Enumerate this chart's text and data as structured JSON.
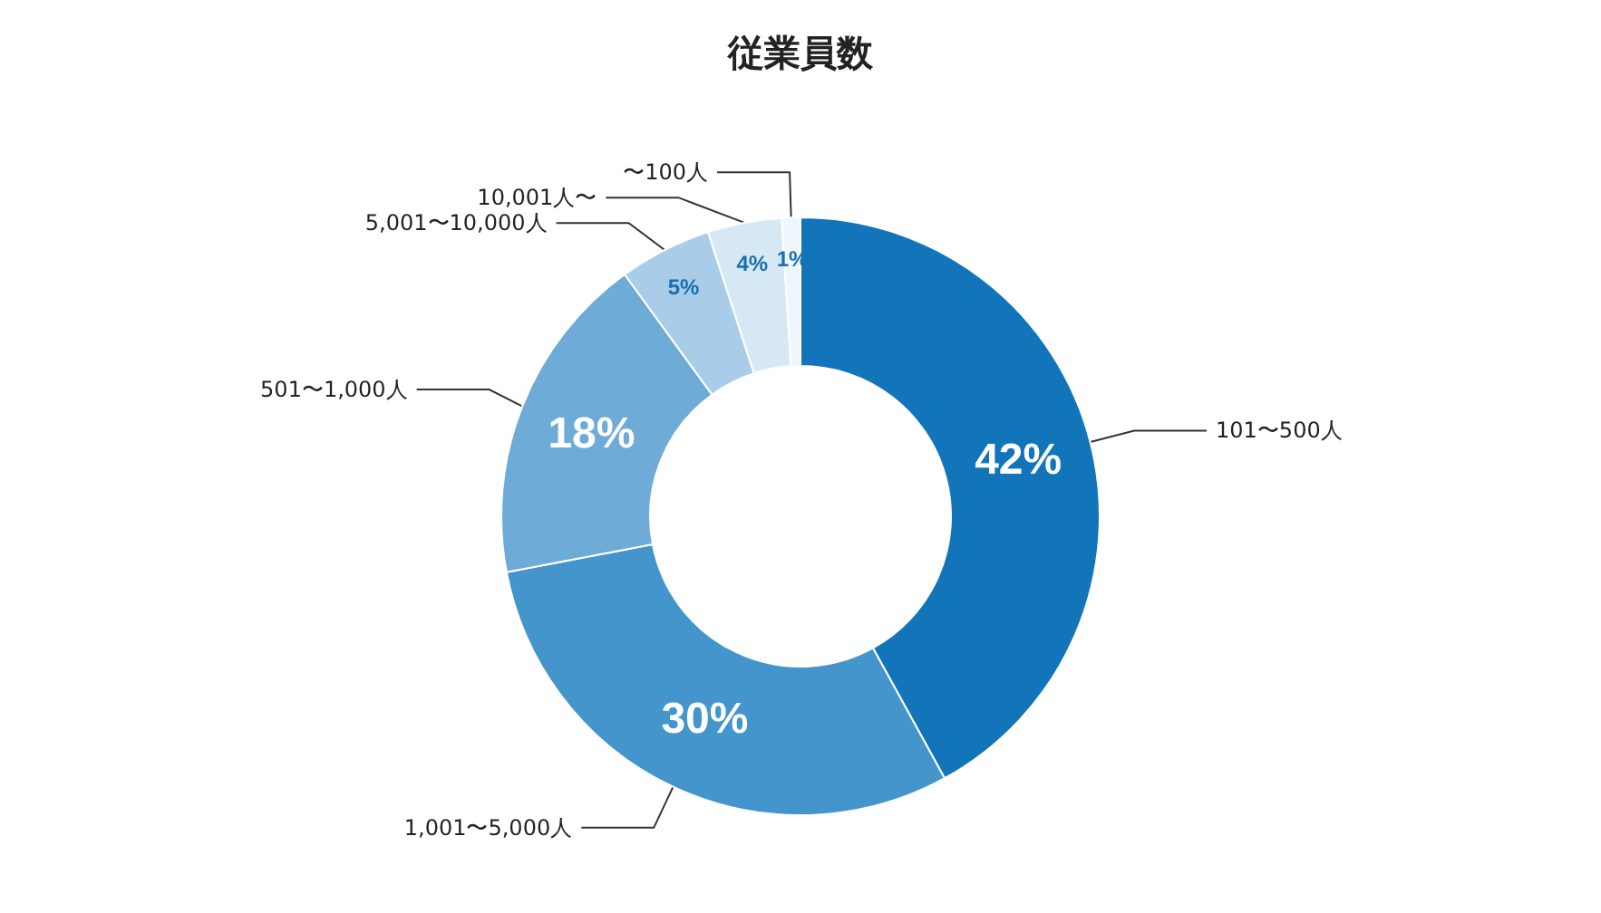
{
  "chart_data": {
    "type": "donut",
    "title": "従業員数",
    "categories": [
      "101〜500人",
      "1,001〜5,000人",
      "501〜1,000人",
      "5,001〜10,000人",
      "10,001人〜",
      "〜100人"
    ],
    "values": [
      42,
      30,
      18,
      5,
      4,
      1
    ],
    "value_labels": [
      "42%",
      "30%",
      "18%",
      "5%",
      "4%",
      "1%"
    ],
    "colors": [
      "#1375b9",
      "#4395cc",
      "#6eabd6",
      "#a9cde8",
      "#d7e8f5",
      "#eef5fb"
    ],
    "legend": false
  }
}
